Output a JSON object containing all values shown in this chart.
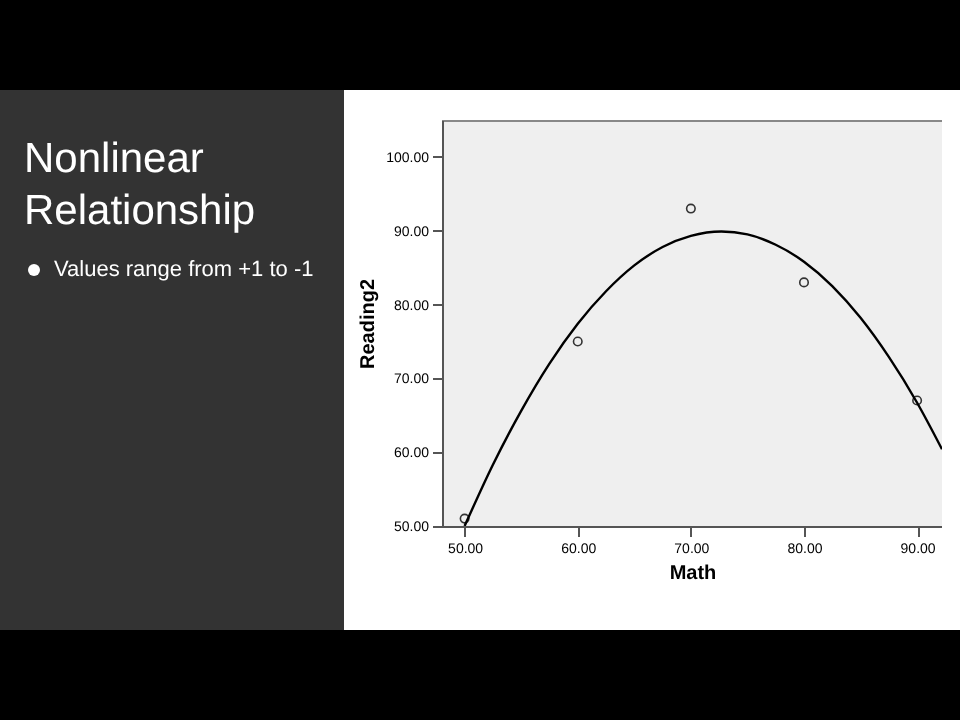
{
  "chart_data": {
    "type": "scatter",
    "title": "Nonlinear Relationship",
    "annotations": [
      "Values range from +1 to -1"
    ],
    "xlabel": "Math",
    "ylabel": "Reading2",
    "xlim": [
      48,
      92.2
    ],
    "ylim": [
      50,
      105
    ],
    "xticks": [
      {
        "value": 50,
        "label": "50.00"
      },
      {
        "value": 60,
        "label": "60.00"
      },
      {
        "value": 70,
        "label": "70.00"
      },
      {
        "value": 80,
        "label": "80.00"
      },
      {
        "value": 90,
        "label": "90.00"
      }
    ],
    "yticks": [
      {
        "value": 50,
        "label": "50.00"
      },
      {
        "value": 60,
        "label": "60.00"
      },
      {
        "value": 70,
        "label": "70.00"
      },
      {
        "value": 80,
        "label": "80.00"
      },
      {
        "value": 90,
        "label": "90.00"
      },
      {
        "value": 100,
        "label": "100.00"
      }
    ],
    "grid": false,
    "series": [
      {
        "marker": "circle",
        "color": "#333333",
        "x": [
          50,
          60,
          70,
          80,
          90
        ],
        "values": [
          51,
          75,
          93,
          83,
          67
        ]
      },
      {
        "type": "line",
        "marker": "none",
        "color": "#000000",
        "x": [
          50,
          52.5,
          55,
          57.5,
          60,
          62.5,
          65,
          67.5,
          70,
          72.7,
          75,
          77.5,
          80,
          82.5,
          85,
          87.5,
          90,
          92.2
        ],
        "values": [
          50.0,
          58.3,
          65.6,
          72.0,
          77.4,
          81.8,
          85.3,
          87.8,
          89.3,
          89.9,
          89.5,
          88.1,
          85.8,
          82.5,
          78.2,
          72.9,
          66.7,
          60.4
        ]
      }
    ]
  }
}
